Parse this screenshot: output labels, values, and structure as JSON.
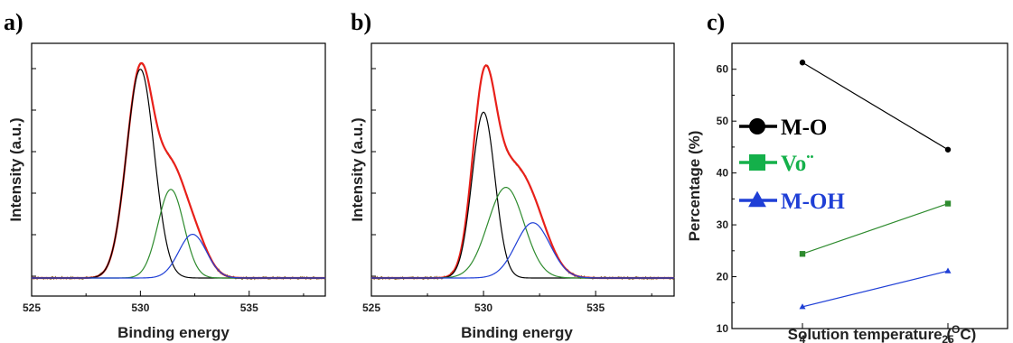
{
  "panels": {
    "a": {
      "letter": "a)"
    },
    "b": {
      "letter": "b)"
    },
    "c": {
      "letter": "c)"
    }
  },
  "chart_data": [
    {
      "panel": "a",
      "type": "line",
      "title": "",
      "xlabel": "Binding energy",
      "ylabel": "Intensity (a.u.)",
      "xlim": [
        525,
        538.5
      ],
      "xticks": [
        525,
        530,
        535
      ],
      "yticks_labeled": false,
      "colors": {
        "envelope": "#e8201a",
        "measured": "#7d7a3a",
        "MO": "#000000",
        "Vo": "#2e8b2e",
        "MOH": "#1f3fd6"
      },
      "background_level": 0.0,
      "components": [
        {
          "key": "MO",
          "center": 530.0,
          "height": 0.86,
          "fwhm": 1.5,
          "color": "#000000"
        },
        {
          "key": "Vo",
          "center": 531.4,
          "height": 0.365,
          "fwhm": 1.4,
          "color": "#2e8b2e"
        },
        {
          "key": "MOH",
          "center": 532.4,
          "height": 0.18,
          "fwhm": 1.5,
          "color": "#1f3fd6"
        }
      ],
      "envelope_peak": {
        "x": 530.0,
        "y": 0.96
      }
    },
    {
      "panel": "b",
      "type": "line",
      "title": "",
      "xlabel": "Binding energy",
      "ylabel": "Intensity (a.u.)",
      "xlim": [
        525,
        538.5
      ],
      "xticks": [
        525,
        530,
        535
      ],
      "yticks_labeled": false,
      "colors": {
        "envelope": "#e8201a",
        "measured": "#7d7a3a",
        "MO": "#000000",
        "Vo": "#2e8b2e",
        "MOH": "#1f3fd6"
      },
      "background_level": 0.0,
      "components": [
        {
          "key": "MO",
          "center": 530.0,
          "height": 0.75,
          "fwhm": 1.2,
          "color": "#000000"
        },
        {
          "key": "Vo",
          "center": 531.0,
          "height": 0.41,
          "fwhm": 1.9,
          "color": "#2e8b2e"
        },
        {
          "key": "MOH",
          "center": 532.2,
          "height": 0.25,
          "fwhm": 1.8,
          "color": "#1f3fd6"
        }
      ],
      "envelope_peak": {
        "x": 530.0,
        "y": 0.95
      }
    },
    {
      "panel": "c",
      "type": "line",
      "title": "",
      "xlabel": "Solution temperature (OC)",
      "xlabel_parts": {
        "main": "Solution temperature (",
        "sup": "O",
        "unit": "C)"
      },
      "ylabel": "Percentage (%)",
      "ylim": [
        10,
        65
      ],
      "yticks": [
        10,
        20,
        30,
        40,
        50,
        60
      ],
      "categories": [
        "4",
        "25"
      ],
      "series": [
        {
          "name": "M-O",
          "marker": "circle",
          "color": "#000000",
          "legend_color": "#000000",
          "values": [
            61.3,
            44.5
          ]
        },
        {
          "name": "Vo¨",
          "marker": "square",
          "color": "#2e8b2e",
          "legend_color": "#14b04a",
          "values": [
            24.4,
            34.1
          ]
        },
        {
          "name": "M-OH",
          "marker": "triangle",
          "color": "#1f3fd6",
          "legend_color": "#1f3fd6",
          "values": [
            14.2,
            21.1
          ]
        }
      ],
      "legend_position": "left"
    }
  ]
}
